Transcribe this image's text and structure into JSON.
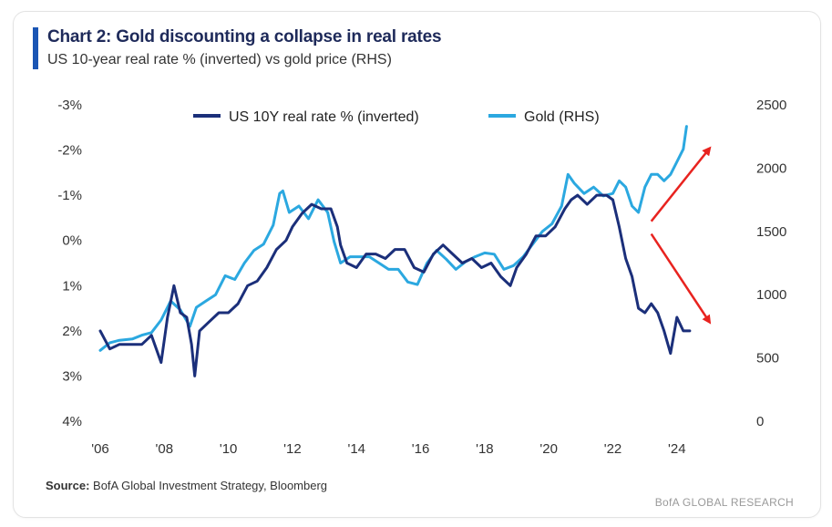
{
  "header": {
    "title": "Chart 2: Gold discounting a collapse in real rates",
    "subtitle": "US 10-year real rate % (inverted) vs gold price (RHS)"
  },
  "footer": {
    "source_label": "Source:",
    "source_text": "BofA Global Investment Strategy, Bloomberg",
    "brand": "BofA GLOBAL RESEARCH"
  },
  "chart_data": {
    "type": "line",
    "title": "Chart 2: Gold discounting a collapse in real rates",
    "subtitle": "US 10-year real rate % (inverted) vs gold price (RHS)",
    "x_ticks": [
      "'06",
      "'08",
      "'10",
      "'12",
      "'14",
      "'16",
      "'18",
      "'20",
      "'22",
      "'24"
    ],
    "x_range": [
      2006,
      2025.2
    ],
    "y_left": {
      "ticks": [
        "-3%",
        "-2%",
        "-1%",
        "0%",
        "1%",
        "2%",
        "3%",
        "4%"
      ],
      "range": [
        -3,
        4
      ],
      "inverted": true
    },
    "y_right": {
      "ticks": [
        "2500",
        "2000",
        "1500",
        "1000",
        "500",
        "0"
      ],
      "range": [
        0,
        2500
      ]
    },
    "grid": false,
    "legend": "top-center",
    "colors": {
      "real_rate": "#1b2f7a",
      "gold": "#2ba8e0",
      "arrow": "#e8231f"
    },
    "series": [
      {
        "name": "US 10Y real rate % (inverted)",
        "axis": "left",
        "x": [
          2006.0,
          2006.3,
          2006.6,
          2007.0,
          2007.3,
          2007.6,
          2007.9,
          2008.1,
          2008.3,
          2008.5,
          2008.7,
          2008.85,
          2008.95,
          2009.1,
          2009.4,
          2009.7,
          2010.0,
          2010.3,
          2010.6,
          2010.9,
          2011.2,
          2011.5,
          2011.8,
          2012.0,
          2012.3,
          2012.6,
          2012.9,
          2013.2,
          2013.4,
          2013.5,
          2013.7,
          2014.0,
          2014.3,
          2014.6,
          2014.9,
          2015.2,
          2015.5,
          2015.8,
          2016.1,
          2016.4,
          2016.7,
          2017.0,
          2017.3,
          2017.6,
          2017.9,
          2018.2,
          2018.5,
          2018.8,
          2019.0,
          2019.3,
          2019.6,
          2019.9,
          2020.2,
          2020.5,
          2020.7,
          2020.9,
          2021.2,
          2021.5,
          2021.8,
          2022.0,
          2022.2,
          2022.4,
          2022.6,
          2022.8,
          2023.0,
          2023.2,
          2023.4,
          2023.6,
          2023.8,
          2024.0,
          2024.2,
          2024.4
        ],
        "values": [
          2.0,
          2.4,
          2.3,
          2.3,
          2.3,
          2.1,
          2.7,
          1.7,
          1.0,
          1.6,
          1.7,
          2.3,
          3.0,
          2.0,
          1.8,
          1.6,
          1.6,
          1.4,
          1.0,
          0.9,
          0.6,
          0.2,
          0.0,
          -0.3,
          -0.6,
          -0.8,
          -0.7,
          -0.7,
          -0.3,
          0.1,
          0.5,
          0.6,
          0.3,
          0.3,
          0.4,
          0.2,
          0.2,
          0.6,
          0.7,
          0.3,
          0.1,
          0.3,
          0.5,
          0.4,
          0.6,
          0.5,
          0.8,
          1.0,
          0.6,
          0.3,
          -0.1,
          -0.1,
          -0.3,
          -0.7,
          -0.9,
          -1.0,
          -0.8,
          -1.0,
          -1.0,
          -0.9,
          -0.3,
          0.4,
          0.8,
          1.5,
          1.6,
          1.4,
          1.6,
          2.0,
          2.5,
          1.7,
          2.0,
          2.0
        ]
      },
      {
        "name": "Gold (RHS)",
        "axis": "right",
        "x": [
          2006.0,
          2006.3,
          2006.6,
          2007.0,
          2007.3,
          2007.6,
          2007.9,
          2008.2,
          2008.5,
          2008.8,
          2009.0,
          2009.3,
          2009.6,
          2009.9,
          2010.2,
          2010.5,
          2010.8,
          2011.1,
          2011.4,
          2011.6,
          2011.7,
          2011.9,
          2012.2,
          2012.5,
          2012.8,
          2013.1,
          2013.3,
          2013.5,
          2013.8,
          2014.1,
          2014.4,
          2014.7,
          2015.0,
          2015.3,
          2015.6,
          2015.9,
          2016.2,
          2016.5,
          2016.8,
          2017.1,
          2017.4,
          2017.7,
          2018.0,
          2018.3,
          2018.6,
          2018.9,
          2019.2,
          2019.5,
          2019.8,
          2020.1,
          2020.4,
          2020.6,
          2020.8,
          2021.1,
          2021.4,
          2021.7,
          2022.0,
          2022.2,
          2022.4,
          2022.6,
          2022.8,
          2023.0,
          2023.2,
          2023.4,
          2023.6,
          2023.8,
          2024.0,
          2024.2,
          2024.3
        ],
        "values": [
          560,
          620,
          640,
          650,
          680,
          700,
          800,
          950,
          880,
          750,
          900,
          950,
          1000,
          1150,
          1120,
          1250,
          1350,
          1400,
          1550,
          1800,
          1820,
          1650,
          1700,
          1600,
          1750,
          1650,
          1420,
          1250,
          1300,
          1300,
          1300,
          1250,
          1200,
          1200,
          1100,
          1080,
          1250,
          1350,
          1280,
          1200,
          1260,
          1300,
          1330,
          1320,
          1200,
          1230,
          1300,
          1400,
          1500,
          1560,
          1700,
          1950,
          1880,
          1800,
          1850,
          1780,
          1800,
          1900,
          1850,
          1700,
          1650,
          1850,
          1950,
          1950,
          1900,
          1950,
          2050,
          2150,
          2330
        ]
      }
    ],
    "annotations": [
      {
        "type": "arrow",
        "direction": "up",
        "from": [
          2023.2,
          1580
        ],
        "to": [
          2025.0,
          2150
        ]
      },
      {
        "type": "arrow",
        "direction": "down",
        "from": [
          2023.2,
          1480
        ],
        "to": [
          2025.0,
          790
        ]
      }
    ]
  }
}
